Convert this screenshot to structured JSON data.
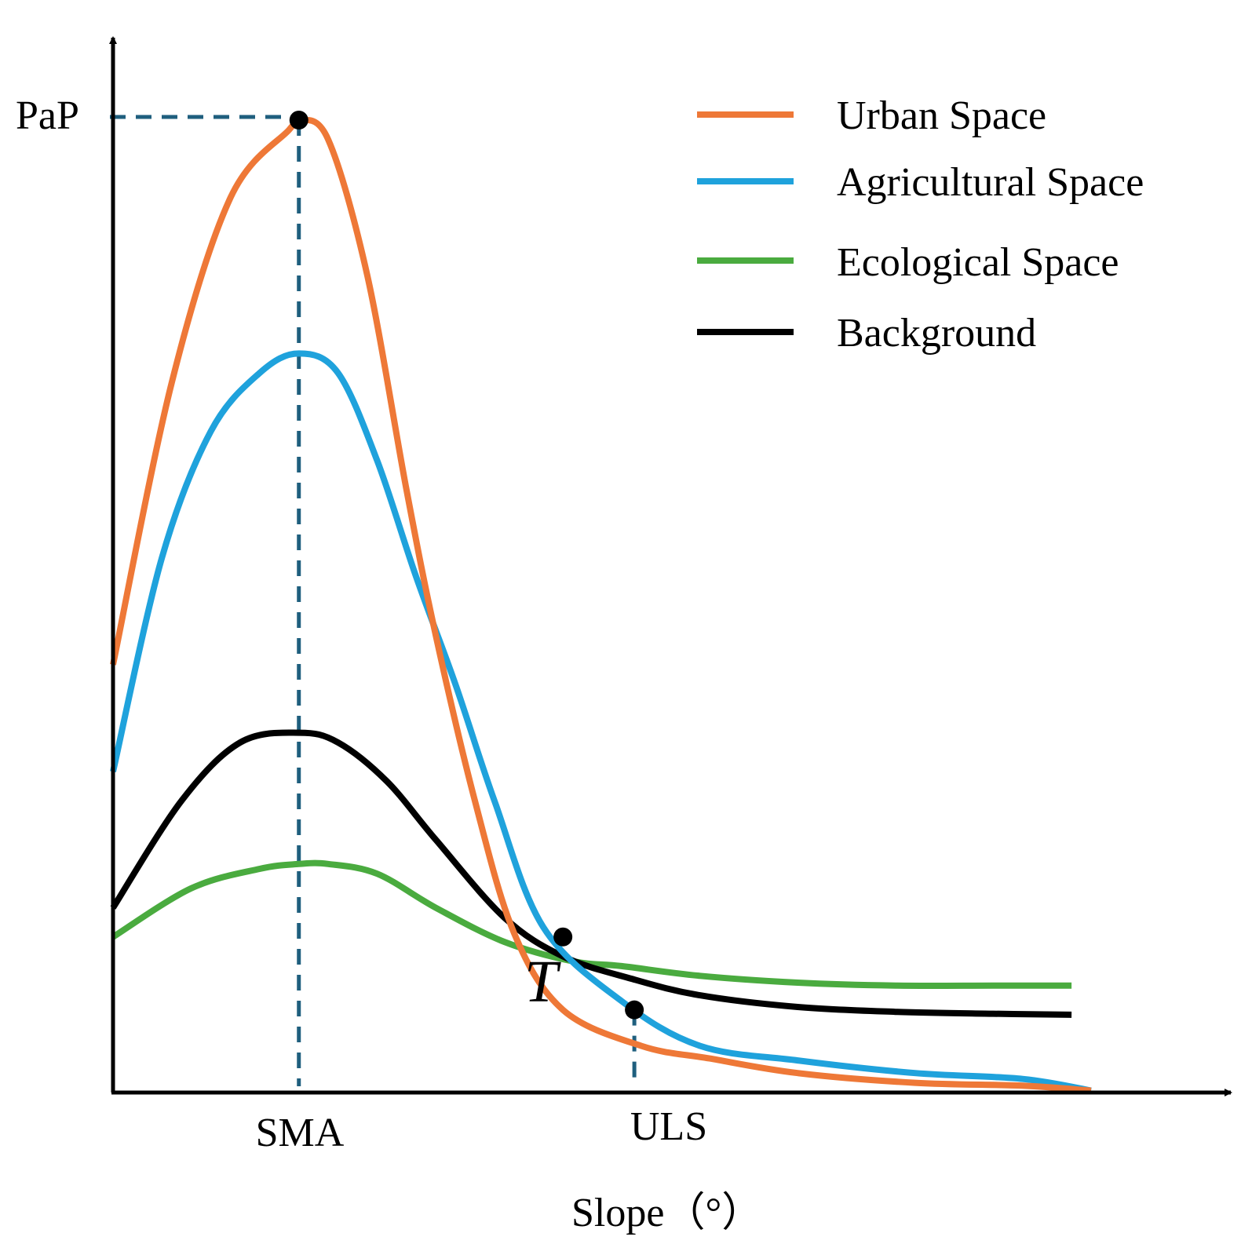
{
  "chart_data": {
    "type": "line",
    "xlabel": "Slope（°）",
    "ylabel": "PaP",
    "x_markers": [
      "SMA",
      "ULS"
    ],
    "point_label": "T",
    "x_domain": [
      0,
      1
    ],
    "y_domain": [
      0,
      1
    ],
    "colors": {
      "urban": "#ee7837",
      "agri": "#1fa2dc",
      "eco": "#4aab3f",
      "background": "#000000",
      "guide": "#1f5f7e"
    },
    "series": [
      {
        "key": "urban",
        "name": "Urban Space",
        "x": [
          0.0,
          0.06,
          0.12,
          0.18,
          0.19,
          0.22,
          0.26,
          0.3,
          0.33,
          0.37,
          0.41,
          0.46,
          0.54,
          0.61,
          0.7,
          0.82,
          0.93,
          1.0
        ],
        "y": [
          0.44,
          0.73,
          0.92,
          0.99,
          1.0,
          0.98,
          0.84,
          0.62,
          0.47,
          0.3,
          0.164,
          0.085,
          0.048,
          0.035,
          0.02,
          0.01,
          0.007,
          0.002
        ]
      },
      {
        "key": "agri",
        "name": "Agricultural Space",
        "x": [
          0.0,
          0.05,
          0.1,
          0.15,
          0.19,
          0.23,
          0.27,
          0.31,
          0.35,
          0.39,
          0.44,
          0.52,
          0.6,
          0.7,
          0.82,
          0.93,
          1.0
        ],
        "y": [
          0.33,
          0.55,
          0.68,
          0.74,
          0.76,
          0.74,
          0.65,
          0.53,
          0.42,
          0.3,
          0.17,
          0.094,
          0.048,
          0.033,
          0.02,
          0.014,
          0.002
        ]
      },
      {
        "key": "eco",
        "name": "Ecological Space",
        "x": [
          0.0,
          0.08,
          0.15,
          0.19,
          0.22,
          0.27,
          0.33,
          0.4,
          0.47,
          0.52,
          0.6,
          0.7,
          0.8,
          0.9,
          0.98
        ],
        "y": [
          0.16,
          0.21,
          0.23,
          0.235,
          0.235,
          0.225,
          0.19,
          0.155,
          0.135,
          0.13,
          0.12,
          0.113,
          0.11,
          0.11,
          0.11
        ]
      },
      {
        "key": "background",
        "name": "Background",
        "x": [
          0.0,
          0.07,
          0.13,
          0.19,
          0.23,
          0.28,
          0.33,
          0.4,
          0.46,
          0.53,
          0.6,
          0.7,
          0.8,
          0.9,
          0.98
        ],
        "y": [
          0.19,
          0.3,
          0.36,
          0.37,
          0.36,
          0.32,
          0.26,
          0.18,
          0.14,
          0.117,
          0.1,
          0.088,
          0.083,
          0.081,
          0.08
        ]
      }
    ],
    "sma_x": 0.19,
    "sma_y": 1.0,
    "t_x": 0.46,
    "t_y": 0.16,
    "uls_x": 0.533,
    "uls_y": 0.085,
    "legend_position": "top-right",
    "grid": false
  }
}
